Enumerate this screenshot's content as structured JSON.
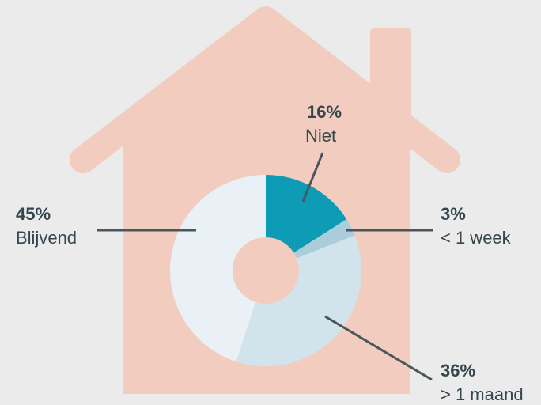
{
  "chart_data": {
    "type": "donut",
    "categories": [
      "Niet",
      "< 1 week",
      "> 1 maand",
      "Blijvend"
    ],
    "values": [
      16,
      3,
      36,
      45
    ],
    "value_labels": [
      "16%",
      "3%",
      "36%",
      "45%"
    ],
    "colors": [
      "#0e9bb5",
      "#a9cdda",
      "#d2e4eb",
      "#e9f1f6"
    ]
  }
}
